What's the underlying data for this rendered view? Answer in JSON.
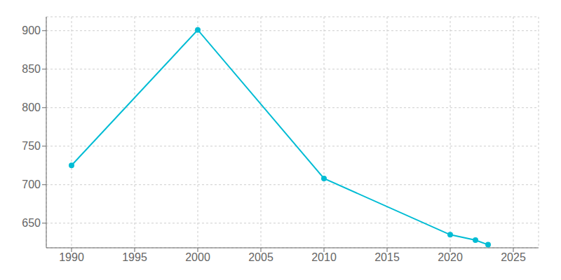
{
  "chart_data": {
    "type": "line",
    "x": [
      1990,
      2000,
      2010,
      2020,
      2022,
      2023
    ],
    "values": [
      725,
      901,
      708,
      635,
      628,
      622
    ],
    "color": "#00BCD4",
    "marker": "circle",
    "xlim": [
      1988,
      2027
    ],
    "xticks": [
      1990,
      1995,
      2000,
      2005,
      2010,
      2015,
      2020,
      2025
    ],
    "ylim": [
      618,
      918
    ],
    "yticks": [
      650,
      700,
      750,
      800,
      850,
      900
    ],
    "grid": true
  }
}
